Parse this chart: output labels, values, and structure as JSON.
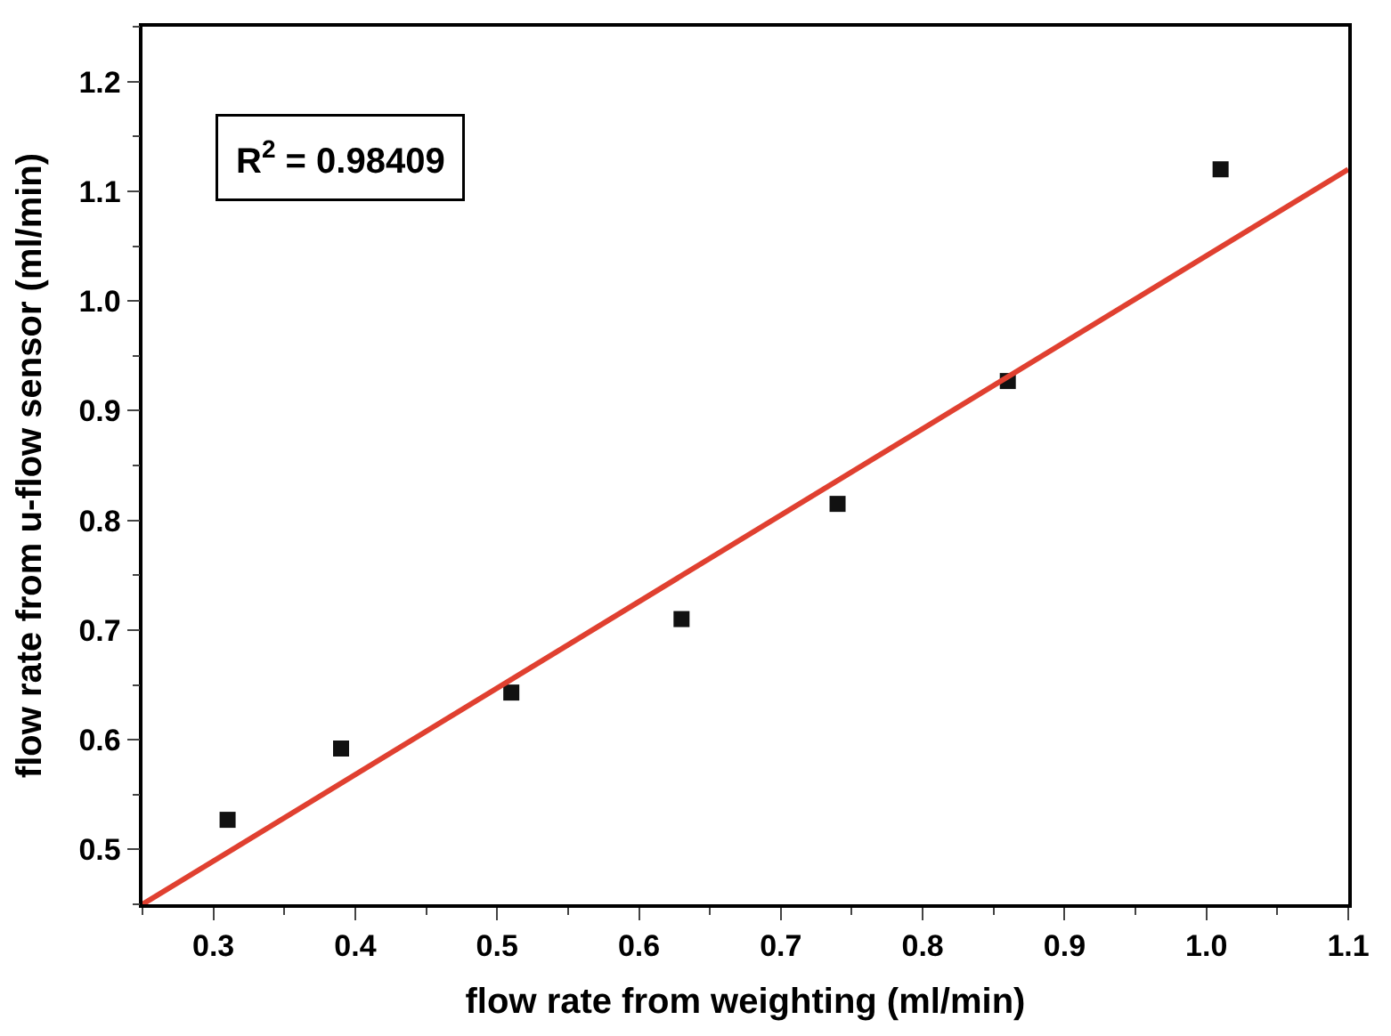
{
  "chart_data": {
    "type": "scatter",
    "xlabel": "flow rate from weighting (ml/min)",
    "ylabel": "flow rate from u-flow sensor (ml/min)",
    "xlim": [
      0.25,
      1.1
    ],
    "ylim": [
      0.45,
      1.25
    ],
    "xticks": [
      0.3,
      0.4,
      0.5,
      0.6,
      0.7,
      0.8,
      0.9,
      "1.0",
      1.1
    ],
    "yticks": [
      0.5,
      0.6,
      0.7,
      0.8,
      0.9,
      "1.0",
      1.1,
      1.2
    ],
    "series": [
      {
        "marker": "square",
        "color": "#111111",
        "x": [
          0.31,
          0.39,
          0.51,
          0.63,
          0.74,
          0.86,
          1.01
        ],
        "values": [
          0.527,
          0.592,
          0.643,
          0.71,
          0.815,
          0.927,
          1.12
        ]
      },
      {
        "type": "line",
        "marker": "none",
        "color": "#e04030",
        "x": [
          0.25,
          1.1
        ],
        "values": [
          0.45,
          1.12
        ]
      }
    ],
    "annotations": [
      "R$^{2}$ = 0.98409"
    ]
  }
}
